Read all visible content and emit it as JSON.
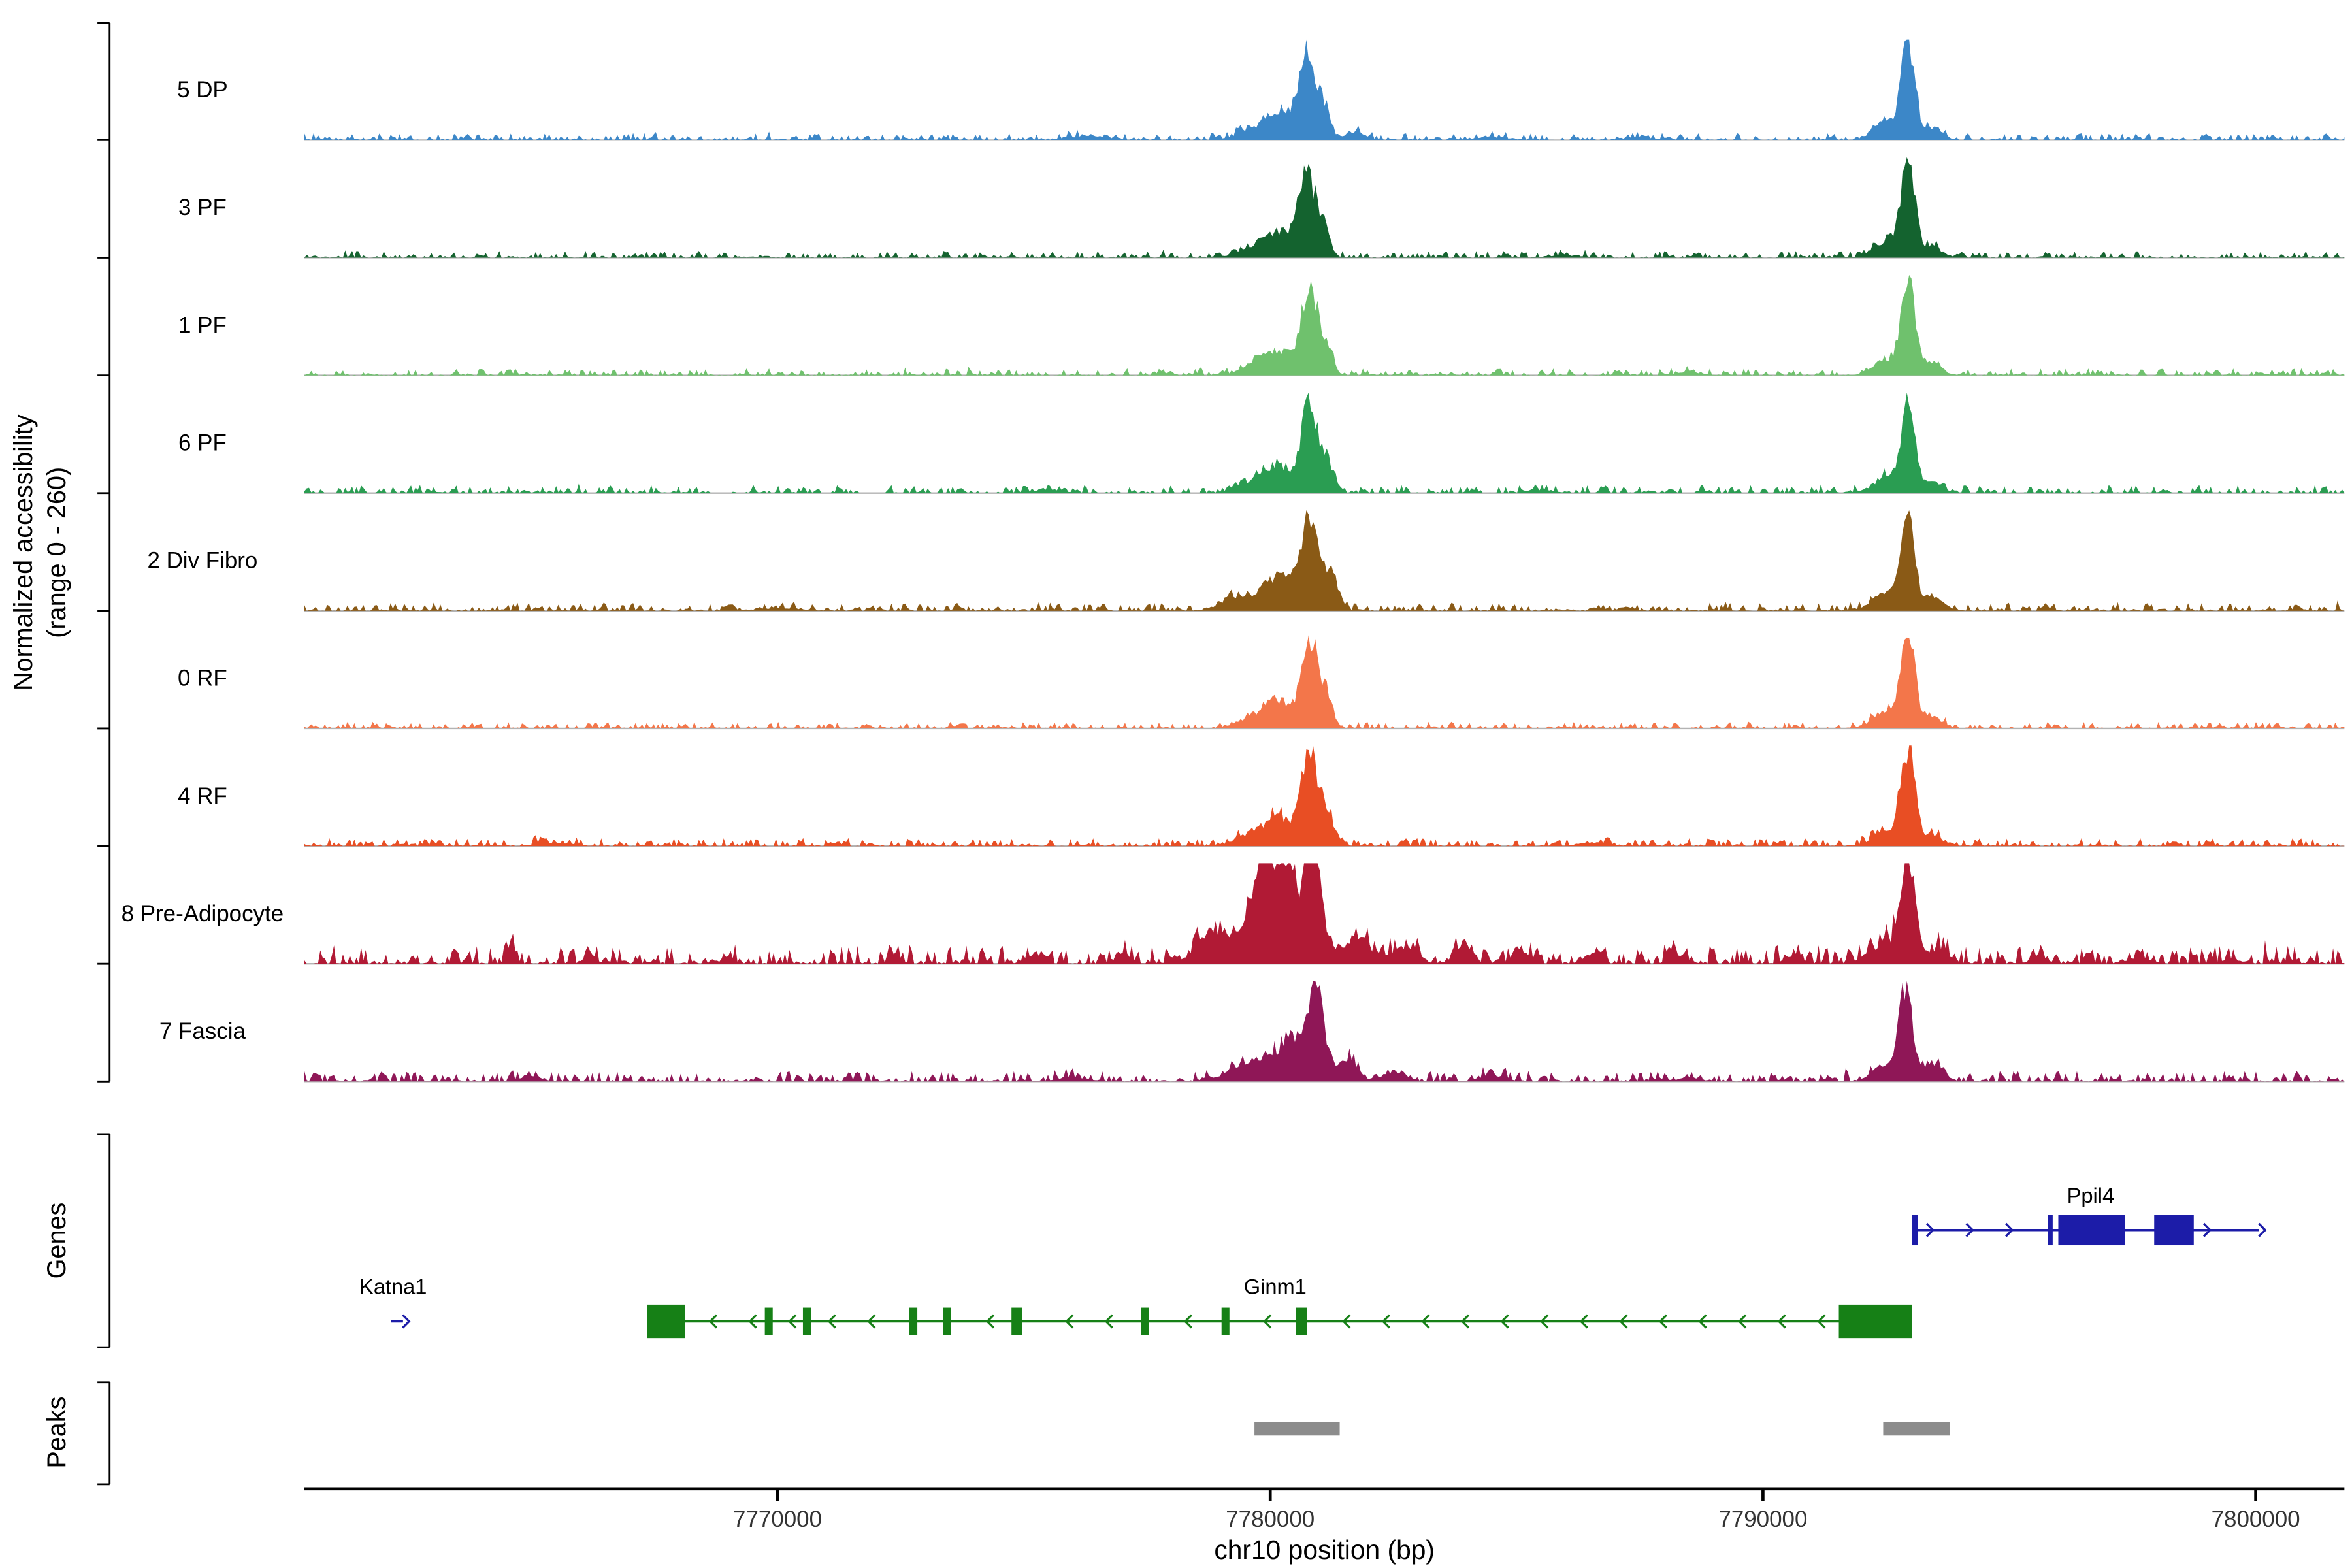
{
  "style": {
    "background": "#ffffff",
    "axis_color": "#000000",
    "baseline_color": "#b3b3b3",
    "bracket_color": "#000000",
    "text_color": "#000000",
    "tick_label_color": "#333333"
  },
  "chart_data": {
    "type": "area",
    "description": "Genome browser view: normalized chromatin accessibility tracks per cluster, gene models, and called peaks on chr10",
    "xlabel": "chr10 position (bp)",
    "ylabel_line1": "Normalized accessibility",
    "ylabel_line2": "(range 0 - 260)",
    "genes_section_label": "Genes",
    "peaks_section_label": "Peaks",
    "x_range_bp": [
      7760400,
      7801800
    ],
    "x_ticks": [
      7770000,
      7780000,
      7790000,
      7800000
    ],
    "y_range_per_track": [
      0,
      260
    ],
    "tracks": [
      {
        "name": "5 DP",
        "color": "#3c87c8",
        "noise": 6,
        "peaks": [
          [
            7776300,
            10,
            350
          ],
          [
            7779500,
            18,
            250
          ],
          [
            7780150,
            70,
            300
          ],
          [
            7780750,
            228,
            160
          ],
          [
            7781100,
            80,
            120
          ],
          [
            7781700,
            20,
            200
          ],
          [
            7784500,
            8,
            300
          ],
          [
            7787500,
            6,
            300
          ],
          [
            7792500,
            45,
            250
          ],
          [
            7792950,
            250,
            140
          ],
          [
            7793450,
            30,
            180
          ]
        ]
      },
      {
        "name": "3 PF",
        "color": "#14632f",
        "noise": 6,
        "peaks": [
          [
            7779500,
            15,
            250
          ],
          [
            7780150,
            65,
            300
          ],
          [
            7780750,
            215,
            170
          ],
          [
            7781100,
            70,
            120
          ],
          [
            7786000,
            6,
            300
          ],
          [
            7792500,
            40,
            250
          ],
          [
            7792950,
            255,
            140
          ],
          [
            7793450,
            28,
            180
          ]
        ]
      },
      {
        "name": "1 PF",
        "color": "#6fc16d",
        "noise": 6,
        "peaks": [
          [
            7779600,
            20,
            250
          ],
          [
            7780150,
            60,
            300
          ],
          [
            7780800,
            235,
            160
          ],
          [
            7781150,
            70,
            120
          ],
          [
            7788500,
            8,
            250
          ],
          [
            7792500,
            40,
            250
          ],
          [
            7792950,
            260,
            140
          ],
          [
            7793450,
            30,
            180
          ]
        ]
      },
      {
        "name": "6 PF",
        "color": "#2a9d52",
        "noise": 7,
        "peaks": [
          [
            7775500,
            8,
            300
          ],
          [
            7779500,
            20,
            250
          ],
          [
            7780150,
            70,
            300
          ],
          [
            7780800,
            225,
            160
          ],
          [
            7781150,
            80,
            130
          ],
          [
            7785500,
            8,
            250
          ],
          [
            7792500,
            40,
            250
          ],
          [
            7792950,
            235,
            140
          ],
          [
            7793450,
            28,
            180
          ]
        ]
      },
      {
        "name": "2 Div Fibro",
        "color": "#8a5a16",
        "noise": 7,
        "peaks": [
          [
            7770000,
            6,
            400
          ],
          [
            7779300,
            35,
            300
          ],
          [
            7780150,
            90,
            300
          ],
          [
            7780800,
            240,
            180
          ],
          [
            7781250,
            90,
            140
          ],
          [
            7792500,
            45,
            250
          ],
          [
            7792950,
            245,
            140
          ],
          [
            7793500,
            32,
            180
          ]
        ]
      },
      {
        "name": "0 RF",
        "color": "#f3764a",
        "noise": 6,
        "peaks": [
          [
            7779500,
            20,
            250
          ],
          [
            7780150,
            75,
            300
          ],
          [
            7780800,
            230,
            160
          ],
          [
            7781150,
            75,
            130
          ],
          [
            7792500,
            42,
            250
          ],
          [
            7792950,
            242,
            140
          ],
          [
            7793450,
            30,
            180
          ]
        ]
      },
      {
        "name": "4 RF",
        "color": "#e84e24",
        "noise": 7,
        "peaks": [
          [
            7765500,
            8,
            300
          ],
          [
            7779500,
            22,
            250
          ],
          [
            7780150,
            75,
            300
          ],
          [
            7780800,
            245,
            160
          ],
          [
            7781150,
            80,
            130
          ],
          [
            7786500,
            8,
            250
          ],
          [
            7792500,
            42,
            250
          ],
          [
            7792950,
            248,
            140
          ],
          [
            7793450,
            30,
            180
          ]
        ]
      },
      {
        "name": "8 Pre-Adipocyte",
        "color": "#b11a35",
        "noise": 16,
        "peaks": [
          [
            7764600,
            45,
            90
          ],
          [
            7766200,
            30,
            100
          ],
          [
            7769000,
            18,
            120
          ],
          [
            7772400,
            22,
            110
          ],
          [
            7775200,
            18,
            150
          ],
          [
            7777000,
            28,
            130
          ],
          [
            7778900,
            60,
            350
          ],
          [
            7779860,
            245,
            200
          ],
          [
            7780330,
            200,
            170
          ],
          [
            7780850,
            255,
            160
          ],
          [
            7780300,
            70,
            900
          ],
          [
            7781800,
            55,
            200
          ],
          [
            7782700,
            35,
            250
          ],
          [
            7783900,
            40,
            180
          ],
          [
            7785100,
            30,
            180
          ],
          [
            7786500,
            25,
            150
          ],
          [
            7788300,
            20,
            180
          ],
          [
            7790600,
            22,
            150
          ],
          [
            7792500,
            55,
            300
          ],
          [
            7792950,
            252,
            140
          ],
          [
            7793550,
            40,
            200
          ],
          [
            7795600,
            18,
            160
          ],
          [
            7797700,
            14,
            200
          ],
          [
            7799500,
            12,
            200
          ]
        ]
      },
      {
        "name": "7 Fascia",
        "color": "#8f1757",
        "noise": 9,
        "peaks": [
          [
            7765000,
            12,
            200
          ],
          [
            7776000,
            10,
            300
          ],
          [
            7779800,
            55,
            500
          ],
          [
            7780500,
            90,
            250
          ],
          [
            7780950,
            235,
            150
          ],
          [
            7781550,
            60,
            200
          ],
          [
            7782500,
            20,
            250
          ],
          [
            7784500,
            15,
            250
          ],
          [
            7788500,
            10,
            200
          ],
          [
            7792500,
            45,
            250
          ],
          [
            7792900,
            240,
            130
          ],
          [
            7793450,
            45,
            200
          ]
        ]
      }
    ],
    "genes": [
      {
        "label": "Katna1",
        "color": "#1c1ca8",
        "row": 1,
        "strand": "+",
        "line": [
          7762150,
          7762400
        ],
        "exons": [],
        "label_x": 7762200
      },
      {
        "label": "Ppil4",
        "color": "#1c1ca8",
        "row": 0,
        "strand": "+",
        "line": [
          7793020,
          7800070
        ],
        "exons": [
          [
            7793020,
            7793150,
            10
          ],
          [
            7795780,
            7795880,
            10
          ],
          [
            7795994,
            7797353,
            10
          ],
          [
            7797940,
            7798743,
            10
          ]
        ],
        "label_x": 7796650
      },
      {
        "label": "Ginm1",
        "color": "#168016",
        "row": 1,
        "strand": "-",
        "line": [
          7767400,
          7792980
        ],
        "exons": [
          [
            7767351,
            7768124,
            11
          ],
          [
            7769743,
            7769903,
            9
          ],
          [
            7770516,
            7770676,
            9
          ],
          [
            7772678,
            7772838,
            9
          ],
          [
            7773358,
            7773518,
            9
          ],
          [
            7774749,
            7774969,
            9
          ],
          [
            7777375,
            7777535,
            9
          ],
          [
            7779012,
            7779172,
            9
          ],
          [
            7780527,
            7780747,
            9
          ],
          [
            7791540,
            7793023,
            11
          ]
        ],
        "label_x": 7780100
      }
    ],
    "peak_regions": [
      [
        7779680,
        7781410
      ],
      [
        7792440,
        7793800
      ]
    ],
    "peak_color": "#8c8c8c"
  }
}
